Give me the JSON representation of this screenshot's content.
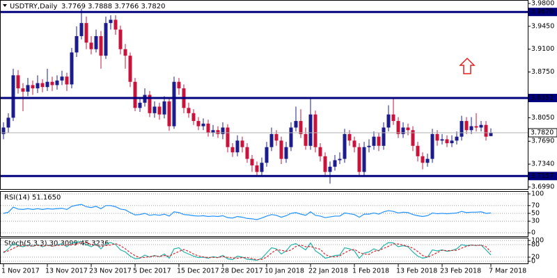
{
  "chart_data": [
    {
      "type": "candlestick",
      "title": "USDTRY,Daily",
      "ohlc_text": "3.7769 3.7888 3.7766 3.7820",
      "categories": [
        "1 Nov 2017",
        null,
        null,
        null,
        null,
        null,
        null,
        null,
        null,
        "13 Nov 2017",
        null,
        null,
        null,
        null,
        null,
        null,
        null,
        null,
        "23 Nov 2017",
        null,
        null,
        null,
        null,
        null,
        null,
        null,
        null,
        "5 Dec 2017",
        null,
        null,
        null,
        null,
        null,
        null,
        null,
        null,
        "15 Dec 2017",
        null,
        null,
        null,
        null,
        null,
        null,
        null,
        null,
        "28 Dec 2017",
        null,
        null,
        null,
        null,
        null,
        null,
        null,
        null,
        "10 Jan 2018",
        null,
        null,
        null,
        null,
        null,
        null,
        null,
        null,
        "22 Jan 2018",
        null,
        null,
        null,
        null,
        null,
        null,
        null,
        null,
        "1 Feb 2018",
        null,
        null,
        null,
        null,
        null,
        null,
        null,
        null,
        "13 Feb 2018",
        null,
        null,
        null,
        null,
        null,
        null,
        null,
        null,
        "23 Feb 2018",
        null,
        null,
        null,
        null,
        null,
        null,
        null,
        null,
        null,
        "7 Mar 2018"
      ],
      "open": [
        3.78,
        3.79,
        3.805,
        3.87,
        3.85,
        3.845,
        3.855,
        3.85,
        3.858,
        3.852,
        3.86,
        3.855,
        3.862,
        3.868,
        3.856,
        3.905,
        3.93,
        3.95,
        3.92,
        3.91,
        3.93,
        3.9,
        3.95,
        3.955,
        3.94,
        3.91,
        3.9,
        3.86,
        3.82,
        3.828,
        3.84,
        3.812,
        3.822,
        3.81,
        3.83,
        3.792,
        3.86,
        3.85,
        3.82,
        3.812,
        3.8,
        3.792,
        3.796,
        3.782,
        3.786,
        3.78,
        3.79,
        3.76,
        3.752,
        3.77,
        3.76,
        3.742,
        3.732,
        3.722,
        3.736,
        3.76,
        3.78,
        3.77,
        3.742,
        3.76,
        3.79,
        3.8,
        3.78,
        3.762,
        3.81,
        3.76,
        3.746,
        3.722,
        3.73,
        3.74,
        3.742,
        3.78,
        3.77,
        3.76,
        3.722,
        3.76,
        3.762,
        3.776,
        3.762,
        3.79,
        3.81,
        3.8,
        3.78,
        3.79,
        3.786,
        3.762,
        3.746,
        3.736,
        3.742,
        3.78,
        3.77,
        3.772,
        3.766,
        3.77,
        3.776,
        3.8,
        3.786,
        3.792,
        3.79,
        3.794,
        3.7769
      ],
      "high": [
        3.798,
        3.812,
        3.88,
        3.878,
        3.858,
        3.866,
        3.862,
        3.87,
        3.864,
        3.88,
        3.868,
        3.87,
        3.877,
        3.874,
        3.912,
        3.945,
        3.972,
        3.96,
        3.93,
        3.94,
        3.938,
        3.96,
        3.962,
        3.962,
        3.946,
        3.918,
        3.905,
        3.866,
        3.836,
        3.85,
        3.846,
        3.83,
        3.828,
        3.838,
        3.836,
        3.868,
        3.866,
        3.856,
        3.828,
        3.818,
        3.806,
        3.804,
        3.802,
        3.794,
        3.792,
        3.798,
        3.795,
        3.766,
        3.778,
        3.776,
        3.766,
        3.748,
        3.738,
        3.744,
        3.768,
        3.79,
        3.786,
        3.776,
        3.768,
        3.798,
        3.822,
        3.818,
        3.79,
        3.836,
        3.816,
        3.766,
        3.752,
        3.738,
        3.748,
        3.752,
        3.788,
        3.786,
        3.776,
        3.766,
        3.768,
        3.772,
        3.784,
        3.782,
        3.798,
        3.824,
        3.835,
        3.806,
        3.798,
        3.796,
        3.792,
        3.768,
        3.752,
        3.75,
        3.788,
        3.786,
        3.78,
        3.778,
        3.778,
        3.784,
        3.808,
        3.806,
        3.806,
        3.812,
        3.8,
        3.8,
        3.7888
      ],
      "low": [
        3.772,
        3.782,
        3.8,
        3.842,
        3.815,
        3.838,
        3.84,
        3.843,
        3.844,
        3.846,
        3.846,
        3.848,
        3.855,
        3.846,
        3.85,
        3.898,
        3.925,
        3.91,
        3.902,
        3.905,
        3.88,
        3.895,
        3.94,
        3.932,
        3.902,
        3.88,
        3.852,
        3.815,
        3.814,
        3.822,
        3.806,
        3.805,
        3.802,
        3.804,
        3.785,
        3.788,
        3.84,
        3.812,
        3.805,
        3.794,
        3.786,
        3.786,
        3.776,
        3.776,
        3.774,
        3.772,
        3.752,
        3.745,
        3.746,
        3.752,
        3.736,
        3.722,
        3.716,
        3.716,
        3.73,
        3.754,
        3.762,
        3.734,
        3.736,
        3.754,
        3.784,
        3.774,
        3.756,
        3.756,
        3.752,
        3.738,
        3.716,
        3.704,
        3.724,
        3.734,
        3.736,
        3.762,
        3.752,
        3.715,
        3.716,
        3.752,
        3.756,
        3.754,
        3.756,
        3.784,
        3.794,
        3.774,
        3.774,
        3.778,
        3.754,
        3.738,
        3.726,
        3.73,
        3.736,
        3.762,
        3.764,
        3.76,
        3.76,
        3.764,
        3.77,
        3.78,
        3.78,
        3.784,
        3.784,
        3.77,
        3.7766
      ],
      "close": [
        3.79,
        3.805,
        3.87,
        3.85,
        3.845,
        3.855,
        3.85,
        3.858,
        3.852,
        3.86,
        3.855,
        3.862,
        3.868,
        3.856,
        3.905,
        3.93,
        3.95,
        3.92,
        3.91,
        3.93,
        3.9,
        3.95,
        3.955,
        3.94,
        3.91,
        3.9,
        3.86,
        3.82,
        3.828,
        3.84,
        3.812,
        3.822,
        3.81,
        3.83,
        3.792,
        3.86,
        3.85,
        3.82,
        3.812,
        3.8,
        3.792,
        3.796,
        3.782,
        3.786,
        3.78,
        3.79,
        3.76,
        3.752,
        3.77,
        3.76,
        3.742,
        3.732,
        3.722,
        3.736,
        3.76,
        3.78,
        3.77,
        3.742,
        3.76,
        3.79,
        3.8,
        3.78,
        3.762,
        3.81,
        3.76,
        3.746,
        3.722,
        3.73,
        3.74,
        3.742,
        3.78,
        3.77,
        3.76,
        3.722,
        3.76,
        3.762,
        3.776,
        3.762,
        3.79,
        3.81,
        3.8,
        3.78,
        3.79,
        3.786,
        3.762,
        3.746,
        3.736,
        3.742,
        3.78,
        3.77,
        3.772,
        3.766,
        3.77,
        3.776,
        3.8,
        3.786,
        3.792,
        3.79,
        3.794,
        3.776,
        3.782
      ],
      "up_color": "#1c1c8c",
      "down_color": "#c8143c",
      "ylim": [
        3.6958,
        3.9853
      ],
      "yticks": [
        {
          "value": 3.98,
          "label": "3.9800"
        },
        {
          "value": 3.945,
          "label": "3.9450"
        },
        {
          "value": 3.91,
          "label": "3.9100"
        },
        {
          "value": 3.875,
          "label": "3.8750"
        },
        {
          "value": 3.805,
          "label": "3.8050"
        },
        {
          "value": 3.769,
          "label": "3.7690"
        },
        {
          "value": 3.734,
          "label": "3.7340"
        },
        {
          "value": 3.699,
          "label": "3.6990"
        }
      ],
      "grid": false,
      "levels": [
        {
          "value": 3.967,
          "label": "3.9670"
        },
        {
          "value": 3.8352,
          "label": "3.8352"
        },
        {
          "value": 3.7157,
          "label": "3.7157"
        }
      ],
      "level_color": "#00007f",
      "current": {
        "value": 3.782,
        "label": "3.7820"
      }
    },
    {
      "type": "line",
      "title": "RSI(14) 51.1650",
      "ylim": [
        0,
        100
      ],
      "yticks": [
        100,
        70,
        50,
        30,
        0
      ],
      "grid": true,
      "series": [
        {
          "color": "#1e90ff",
          "dash": false,
          "values": [
            50,
            53,
            66,
            61,
            60,
            62,
            60,
            62,
            60,
            62,
            61,
            62,
            63,
            60,
            68,
            71,
            73,
            67,
            65,
            68,
            62,
            70,
            70,
            67,
            61,
            59,
            52,
            46,
            47,
            50,
            45,
            47,
            45,
            48,
            43,
            54,
            52,
            47,
            46,
            44,
            43,
            44,
            42,
            43,
            42,
            44,
            39,
            38,
            42,
            40,
            37,
            36,
            34,
            38,
            43,
            47,
            45,
            40,
            44,
            50,
            52,
            48,
            45,
            54,
            45,
            43,
            39,
            41,
            43,
            43,
            51,
            49,
            47,
            40,
            48,
            48,
            51,
            48,
            54,
            57,
            55,
            51,
            53,
            52,
            47,
            44,
            42,
            44,
            51,
            49,
            50,
            49,
            50,
            51,
            55,
            52,
            53,
            53,
            54,
            50,
            51.165
          ]
        }
      ]
    },
    {
      "type": "line",
      "title": "Stoch(5,3,3) 30.3099 45.3236",
      "ylim": [
        0,
        100
      ],
      "yticks": [
        100,
        80,
        20,
        0
      ],
      "grid": true,
      "series": [
        {
          "color": "#20b2aa",
          "dash": false,
          "values": [
            40,
            60,
            85,
            75,
            70,
            78,
            72,
            80,
            70,
            78,
            72,
            78,
            85,
            70,
            88,
            92,
            95,
            80,
            70,
            82,
            60,
            85,
            90,
            80,
            55,
            45,
            25,
            12,
            15,
            30,
            20,
            28,
            22,
            35,
            15,
            60,
            65,
            45,
            35,
            25,
            18,
            20,
            15,
            22,
            18,
            28,
            12,
            8,
            25,
            20,
            10,
            8,
            5,
            15,
            40,
            65,
            60,
            35,
            50,
            78,
            85,
            70,
            55,
            88,
            50,
            35,
            15,
            20,
            28,
            30,
            65,
            60,
            50,
            15,
            40,
            45,
            60,
            50,
            75,
            90,
            88,
            70,
            75,
            70,
            45,
            25,
            15,
            20,
            55,
            50,
            55,
            48,
            52,
            60,
            80,
            75,
            78,
            76,
            78,
            55,
            30.3099
          ]
        },
        {
          "color": "#e0202a",
          "dash": true,
          "values": [
            45,
            50,
            62,
            73,
            77,
            74,
            73,
            77,
            74,
            76,
            73,
            76,
            78,
            78,
            81,
            83,
            92,
            89,
            82,
            77,
            71,
            76,
            78,
            85,
            75,
            60,
            42,
            27,
            17,
            19,
            22,
            26,
            23,
            28,
            24,
            37,
            47,
            57,
            48,
            35,
            26,
            21,
            18,
            19,
            18,
            23,
            19,
            16,
            15,
            18,
            18,
            13,
            8,
            9,
            20,
            40,
            55,
            53,
            48,
            54,
            71,
            78,
            70,
            71,
            64,
            58,
            33,
            23,
            21,
            26,
            41,
            52,
            58,
            42,
            35,
            33,
            48,
            52,
            62,
            72,
            84,
            83,
            78,
            72,
            63,
            47,
            28,
            20,
            30,
            42,
            53,
            51,
            52,
            53,
            63,
            72,
            78,
            76,
            77,
            70,
            45.3236
          ]
        }
      ]
    }
  ]
}
